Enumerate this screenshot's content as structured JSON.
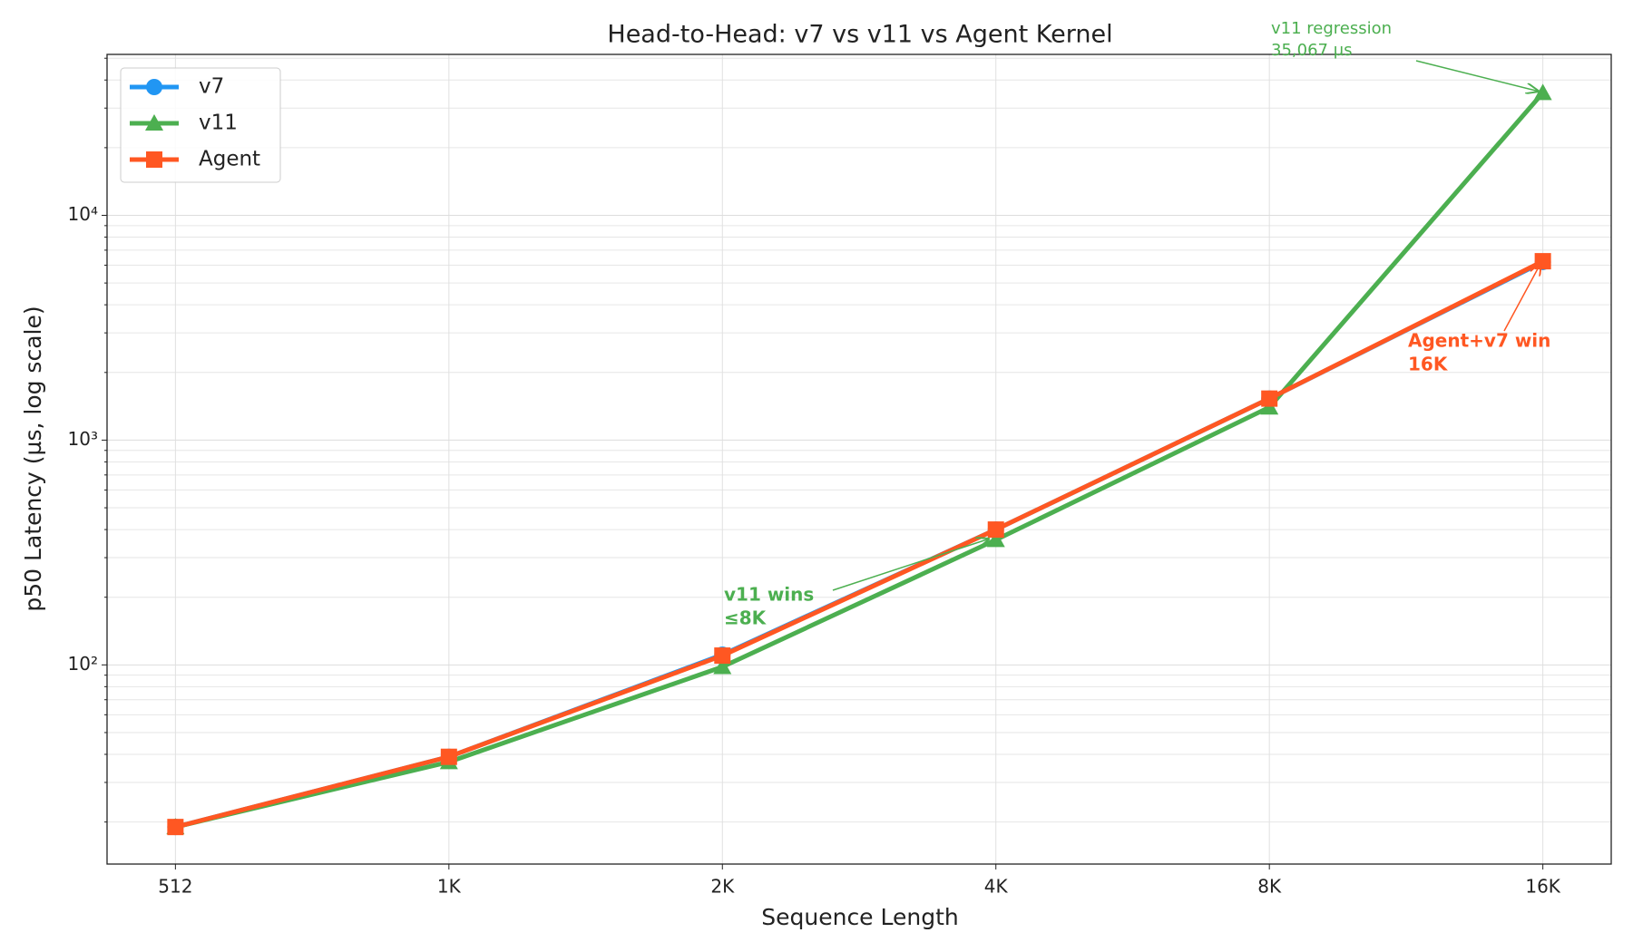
{
  "chart_data": {
    "type": "line",
    "title": "Head-to-Head: v7 vs v11 vs Agent Kernel",
    "x_label": "Sequence Length",
    "y_label": "p50 Latency (µs, log scale)",
    "categories": [
      "512",
      "1K",
      "2K",
      "4K",
      "8K",
      "16K"
    ],
    "series": [
      {
        "name": "v7",
        "color": "#2196F3",
        "marker": "circle",
        "values": [
          19,
          39,
          111,
          400,
          1530,
          6200
        ]
      },
      {
        "name": "v11",
        "color": "#4CAF50",
        "marker": "triangle",
        "values": [
          19,
          37,
          98,
          360,
          1400,
          35067
        ]
      },
      {
        "name": "Agent",
        "color": "#FF5722",
        "marker": "square",
        "values": [
          19,
          39,
          110,
          400,
          1530,
          6250
        ]
      }
    ],
    "log_y": true,
    "ylim": [
      13,
      52000
    ],
    "yticks": [
      {
        "value": 100,
        "label": "10²"
      },
      {
        "value": 1000,
        "label": "10³"
      },
      {
        "value": 10000,
        "label": "10⁴"
      }
    ],
    "yminorticks": [
      20,
      30,
      40,
      50,
      60,
      70,
      80,
      90,
      200,
      300,
      400,
      500,
      600,
      700,
      800,
      900,
      2000,
      3000,
      4000,
      5000,
      6000,
      7000,
      8000,
      9000,
      20000,
      30000,
      40000,
      50000
    ],
    "grid": true,
    "legend": "upper left",
    "annotations": [
      {
        "lines": [
          "v11 regression",
          "35,067 µs"
        ],
        "color": "#4CAF50"
      },
      {
        "lines": [
          "v11 wins",
          "≤8K"
        ],
        "color": "#4CAF50"
      },
      {
        "lines": [
          "Agent+v7 win",
          "16K"
        ],
        "color": "#FF5722"
      }
    ]
  }
}
